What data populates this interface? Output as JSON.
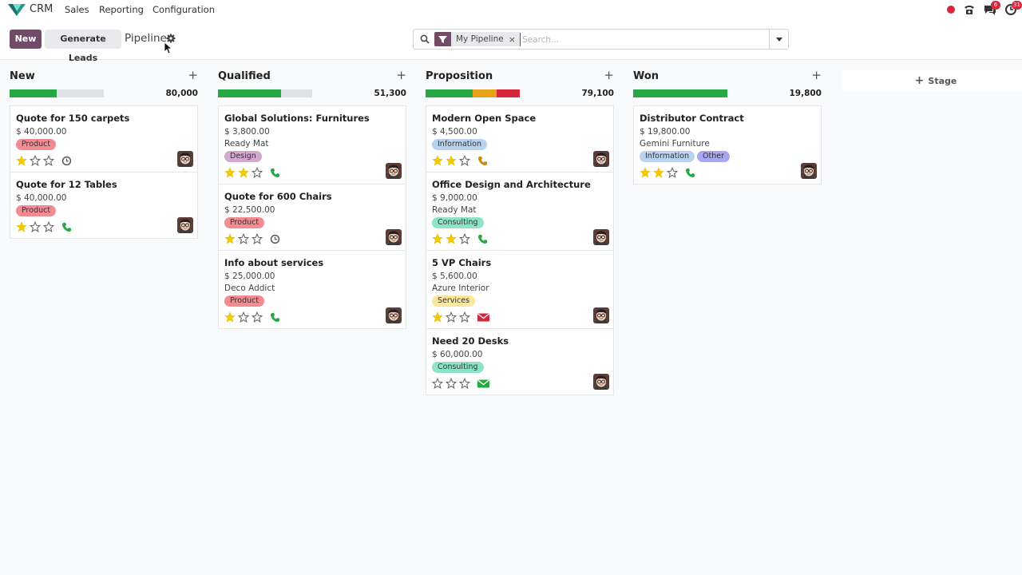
{
  "navbar": {
    "app_name": "CRM",
    "menus": [
      "Sales",
      "Reporting",
      "Configuration"
    ],
    "badges": {
      "activities": "6",
      "chat": "31"
    }
  },
  "control": {
    "new_label": "New",
    "generate_label": "Generate Leads",
    "title": "Pipeline",
    "filter_label": "My Pipeline",
    "filter_close": "×",
    "search_placeholder": "Search..."
  },
  "colors": {
    "primary": "#714b67",
    "green": "#28a745",
    "orange": "#e6a219",
    "red": "#d6263b",
    "star": "#f3cc00"
  },
  "stage_add_label": "Stage",
  "columns": [
    {
      "title": "New",
      "total": "80,000",
      "progress": [
        {
          "color": "#28a745",
          "fraction": 0.5
        }
      ],
      "cards": [
        {
          "title": "Quote for 150 carpets",
          "amount": "$ 40,000.00",
          "customer": "",
          "tags": [
            {
              "label": "Product",
              "color": "#f28b92"
            }
          ],
          "stars": 1,
          "activity": "clock-icon"
        },
        {
          "title": "Quote for 12 Tables",
          "amount": "$ 40,000.00",
          "customer": "",
          "tags": [
            {
              "label": "Product",
              "color": "#f28b92"
            }
          ],
          "stars": 1,
          "activity": "phone-icon"
        }
      ]
    },
    {
      "title": "Qualified",
      "total": "51,300",
      "progress": [
        {
          "color": "#28a745",
          "fraction": 0.67
        }
      ],
      "cards": [
        {
          "title": "Global Solutions: Furnitures",
          "amount": "$ 3,800.00",
          "customer": "Ready Mat",
          "tags": [
            {
              "label": "Design",
              "color": "#d3a8cf"
            }
          ],
          "stars": 2,
          "activity": "phone-icon"
        },
        {
          "title": "Quote for 600 Chairs",
          "amount": "$ 22,500.00",
          "customer": "",
          "tags": [
            {
              "label": "Product",
              "color": "#f28b92"
            }
          ],
          "stars": 1,
          "activity": "clock-icon"
        },
        {
          "title": "Info about services",
          "amount": "$ 25,000.00",
          "customer": "Deco Addict",
          "tags": [
            {
              "label": "Product",
              "color": "#f28b92"
            }
          ],
          "stars": 1,
          "activity": "phone-icon"
        }
      ]
    },
    {
      "title": "Proposition",
      "total": "79,100",
      "progress": [
        {
          "color": "#28a745",
          "fraction": 0.5
        },
        {
          "color": "#e6a219",
          "fraction": 0.25
        },
        {
          "color": "#d6263b",
          "fraction": 0.25
        }
      ],
      "cards": [
        {
          "title": "Modern Open Space",
          "amount": "$ 4,500.00",
          "customer": "",
          "tags": [
            {
              "label": "Information",
              "color": "#b9d3ef"
            }
          ],
          "stars": 2,
          "activity": "phone-icon-orange"
        },
        {
          "title": "Office Design and Architecture",
          "amount": "$ 9,000.00",
          "customer": "Ready Mat",
          "tags": [
            {
              "label": "Consulting",
              "color": "#8fe3c6"
            }
          ],
          "stars": 2,
          "activity": "phone-icon"
        },
        {
          "title": "5 VP Chairs",
          "amount": "$ 5,600.00",
          "customer": "Azure Interior",
          "tags": [
            {
              "label": "Services",
              "color": "#fbe69b"
            }
          ],
          "stars": 1,
          "activity": "envelope-icon-red"
        },
        {
          "title": "Need 20 Desks",
          "amount": "$ 60,000.00",
          "customer": "",
          "tags": [
            {
              "label": "Consulting",
              "color": "#8fe3c6"
            }
          ],
          "stars": 0,
          "activity": "envelope-icon-green"
        }
      ]
    },
    {
      "title": "Won",
      "total": "19,800",
      "progress": [
        {
          "color": "#28a745",
          "fraction": 1.0
        }
      ],
      "cards": [
        {
          "title": "Distributor Contract",
          "amount": "$ 19,800.00",
          "customer": "Gemini Furniture",
          "tags": [
            {
              "label": "Information",
              "color": "#b9d3ef"
            },
            {
              "label": "Other",
              "color": "#a8a6f0"
            }
          ],
          "stars": 2,
          "activity": "phone-icon"
        }
      ]
    }
  ]
}
